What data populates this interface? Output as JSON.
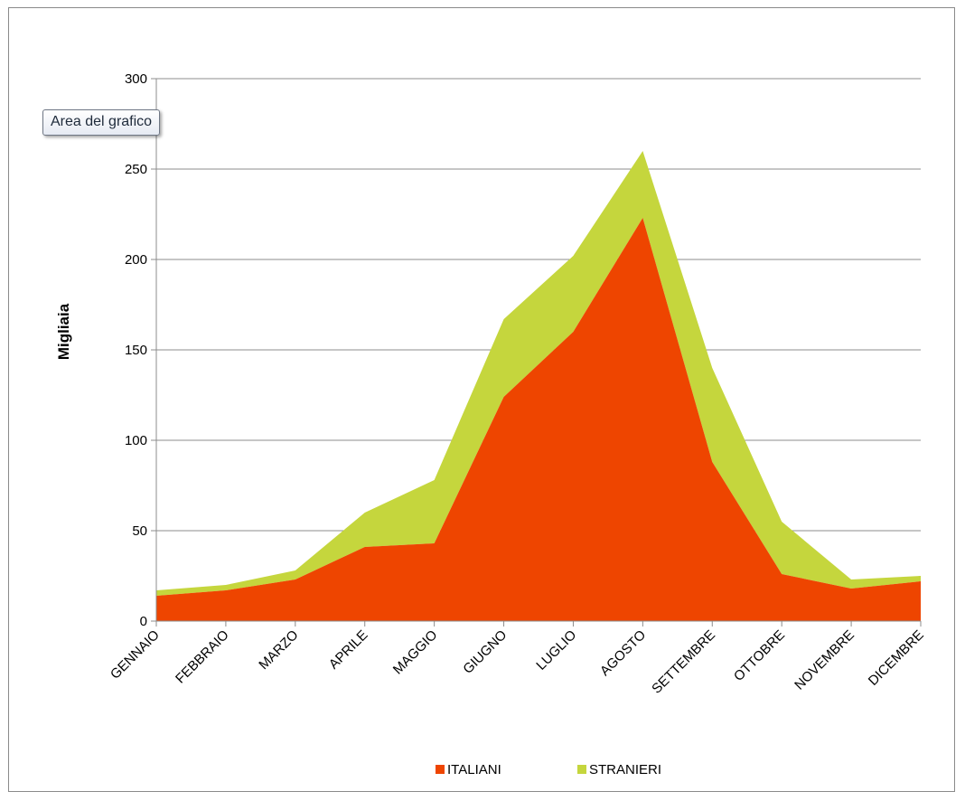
{
  "tooltip": {
    "text": "Area del grafico"
  },
  "chart_data": {
    "type": "area",
    "stacked": true,
    "title": "",
    "xlabel": "",
    "ylabel": "Migliaia",
    "categories": [
      "GENNAIO",
      "FEBBRAIO",
      "MARZO",
      "APRILE",
      "MAGGIO",
      "GIUGNO",
      "LUGLIO",
      "AGOSTO",
      "SETTEMBRE",
      "OTTOBRE",
      "NOVEMBRE",
      "DICEMBRE"
    ],
    "ylim": [
      0,
      300
    ],
    "yticks": [
      0,
      50,
      100,
      150,
      200,
      250,
      300
    ],
    "ytick_labels": [
      "0",
      "50",
      "100",
      "150",
      "200",
      "250",
      "300"
    ],
    "grid": true,
    "legend": "bottom",
    "series": [
      {
        "name": "ITALIANI",
        "color": "#ee4500",
        "values": [
          14,
          17,
          23,
          41,
          43,
          124,
          160,
          223,
          88,
          26,
          18,
          22
        ]
      },
      {
        "name": "STRANIERI",
        "color": "#c5d63d",
        "values": [
          3,
          3,
          5,
          19,
          35,
          43,
          42,
          37,
          52,
          29,
          5,
          3
        ]
      }
    ]
  }
}
